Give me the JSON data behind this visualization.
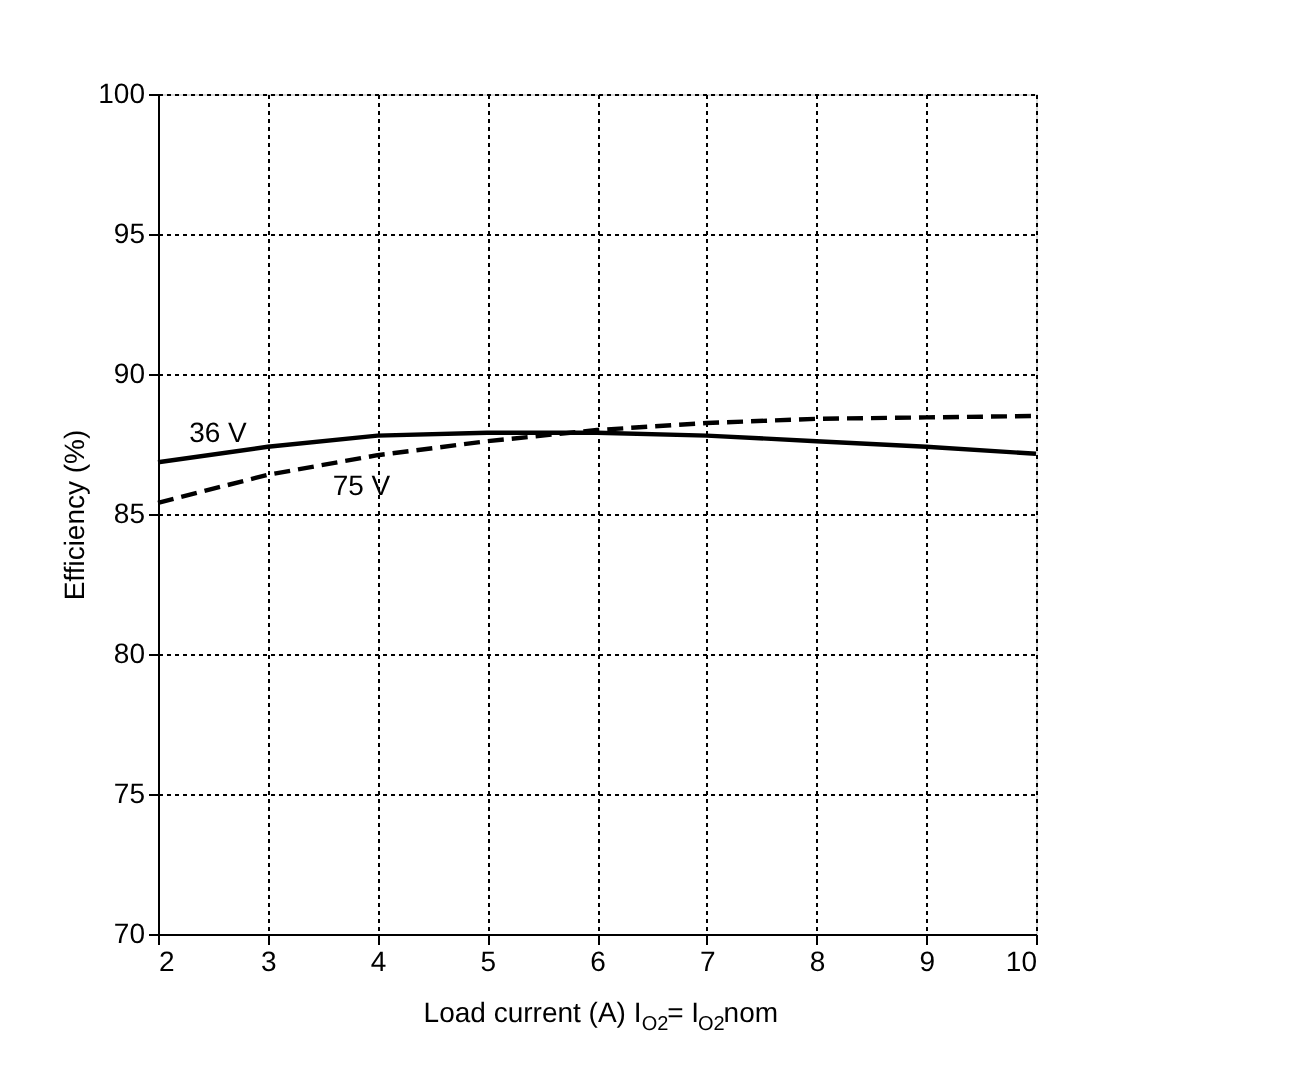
{
  "chart_data": {
    "type": "line",
    "xlabel": "Load current (A) I$_{O2}$= I$_{O2}$nom",
    "ylabel": "Efficiency (%)",
    "x": [
      2,
      3,
      4,
      5,
      6,
      7,
      8,
      9,
      10
    ],
    "series": [
      {
        "name": "36 V",
        "color": "#000000",
        "line_style": "solid",
        "values": [
          86.85,
          87.4,
          87.8,
          87.9,
          87.9,
          87.8,
          87.6,
          87.4,
          87.15
        ]
      },
      {
        "name": "75 V",
        "color": "#000000",
        "line_style": "dashed",
        "values": [
          85.4,
          86.4,
          87.1,
          87.6,
          88.0,
          88.25,
          88.4,
          88.45,
          88.5
        ]
      }
    ],
    "xlim": [
      2,
      10
    ],
    "xticks": [
      2,
      3,
      4,
      5,
      6,
      7,
      8,
      9,
      10
    ],
    "ylim": [
      70,
      100
    ],
    "yticks": [
      70,
      75,
      80,
      85,
      90,
      95,
      100
    ],
    "grid": true,
    "marker": "none"
  }
}
